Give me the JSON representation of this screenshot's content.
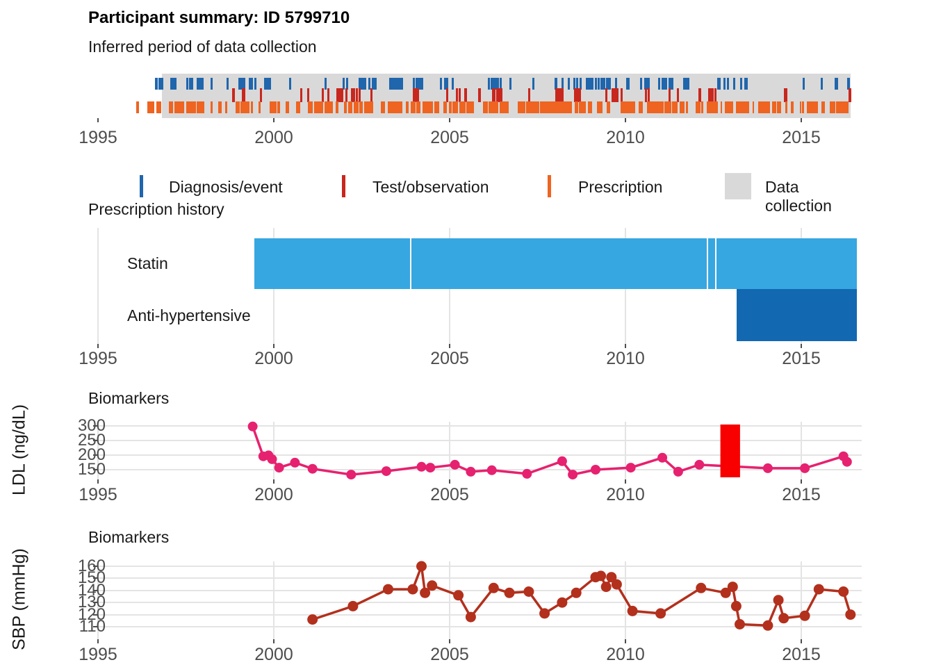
{
  "header": {
    "title": "Participant summary: ID 5799710",
    "subtitle": "Inferred period of data collection"
  },
  "legend": {
    "items": [
      {
        "label": "Diagnosis/event",
        "color": "#1f66ad",
        "glyph": "bar"
      },
      {
        "label": "Test/observation",
        "color": "#c8271e",
        "glyph": "bar"
      },
      {
        "label": "Prescription",
        "color": "#ee6420",
        "glyph": "bar"
      },
      {
        "label": "Data collection",
        "color": "#d9d9d9",
        "glyph": "square"
      }
    ]
  },
  "chart_data": [
    {
      "type": "timeline",
      "title": "Inferred period of data collection",
      "x_ticks": [
        1995,
        2000,
        2005,
        2010,
        2015
      ],
      "x_range_years": [
        1993.2,
        2018.8
      ],
      "data_collection_period": [
        1996.8,
        2016.4
      ],
      "background_color": "#d9d9d9",
      "rows": [
        {
          "name": "Diagnosis/event",
          "color": "#1f66ad",
          "approx_count": 92,
          "span": [
            1996.65,
            2016.35
          ],
          "seed": 11
        },
        {
          "name": "Test/observation",
          "color": "#c8271e",
          "approx_count": 42,
          "span": [
            1998.85,
            2016.38
          ],
          "seed": 22
        },
        {
          "name": "Prescription",
          "color": "#ee6420",
          "approx_count": 240,
          "span": [
            1996.12,
            2016.3
          ],
          "seed": 33
        }
      ]
    },
    {
      "type": "gantt",
      "title": "Prescription history",
      "x_ticks": [
        1995,
        2000,
        2005,
        2010,
        2015
      ],
      "rows": [
        {
          "label": "Statin",
          "color": "#36a7e1",
          "segments": [
            [
              1999.45,
              2003.88
            ],
            [
              2003.92,
              2012.31
            ],
            [
              2012.35,
              2012.55
            ],
            [
              2012.59,
              2016.58
            ]
          ]
        },
        {
          "label": "Anti-hypertensive",
          "color": "#1268b1",
          "segments": [
            [
              2013.16,
              2016.58
            ]
          ]
        }
      ]
    },
    {
      "type": "line",
      "title": "Biomarkers",
      "ylabel": "LDL (ng/dL)",
      "yticks": [
        300,
        250,
        200,
        150
      ],
      "ylim": [
        128,
        305
      ],
      "x_ticks": [
        1995,
        2000,
        2005,
        2010,
        2015
      ],
      "color": "#e6216f",
      "highlight_bar": {
        "color": "#f80000",
        "x_span": [
          2012.7,
          2013.26
        ]
      },
      "points": [
        [
          1999.4,
          298
        ],
        [
          1999.7,
          196
        ],
        [
          1999.85,
          199
        ],
        [
          1999.95,
          186
        ],
        [
          2000.15,
          157
        ],
        [
          2000.6,
          174
        ],
        [
          2001.1,
          153
        ],
        [
          2002.2,
          133
        ],
        [
          2003.2,
          145
        ],
        [
          2004.2,
          160
        ],
        [
          2004.45,
          157
        ],
        [
          2005.15,
          167
        ],
        [
          2005.6,
          143
        ],
        [
          2006.2,
          148
        ],
        [
          2007.2,
          136
        ],
        [
          2008.2,
          179
        ],
        [
          2008.5,
          133
        ],
        [
          2009.15,
          150
        ],
        [
          2010.15,
          157
        ],
        [
          2011.05,
          191
        ],
        [
          2011.5,
          143
        ],
        [
          2012.1,
          167
        ],
        [
          2014.05,
          155
        ],
        [
          2015.1,
          155
        ],
        [
          2016.2,
          196
        ],
        [
          2016.3,
          177
        ]
      ]
    },
    {
      "type": "line",
      "title": "Biomarkers",
      "ylabel": "SBP (mmHg)",
      "yticks": [
        160,
        150,
        140,
        130,
        120,
        110
      ],
      "ylim": [
        106,
        164
      ],
      "x_ticks": [
        1995,
        2000,
        2005,
        2010,
        2015
      ],
      "color": "#b3301d",
      "points": [
        [
          2001.1,
          116
        ],
        [
          2002.25,
          127
        ],
        [
          2003.25,
          141
        ],
        [
          2003.95,
          141
        ],
        [
          2004.2,
          160
        ],
        [
          2004.3,
          138
        ],
        [
          2004.5,
          144
        ],
        [
          2005.25,
          136
        ],
        [
          2005.6,
          118
        ],
        [
          2006.25,
          142
        ],
        [
          2006.7,
          138
        ],
        [
          2007.25,
          139
        ],
        [
          2007.7,
          121
        ],
        [
          2008.2,
          130
        ],
        [
          2008.6,
          138
        ],
        [
          2009.15,
          151
        ],
        [
          2009.3,
          152
        ],
        [
          2009.45,
          143
        ],
        [
          2009.6,
          151
        ],
        [
          2009.75,
          145
        ],
        [
          2010.2,
          123
        ],
        [
          2011.0,
          121
        ],
        [
          2012.15,
          142
        ],
        [
          2012.85,
          138
        ],
        [
          2013.05,
          143
        ],
        [
          2013.15,
          127
        ],
        [
          2013.25,
          112
        ],
        [
          2014.05,
          111
        ],
        [
          2014.35,
          132
        ],
        [
          2014.5,
          117
        ],
        [
          2015.1,
          119
        ],
        [
          2015.5,
          141
        ],
        [
          2016.2,
          139
        ],
        [
          2016.4,
          120
        ]
      ]
    }
  ]
}
